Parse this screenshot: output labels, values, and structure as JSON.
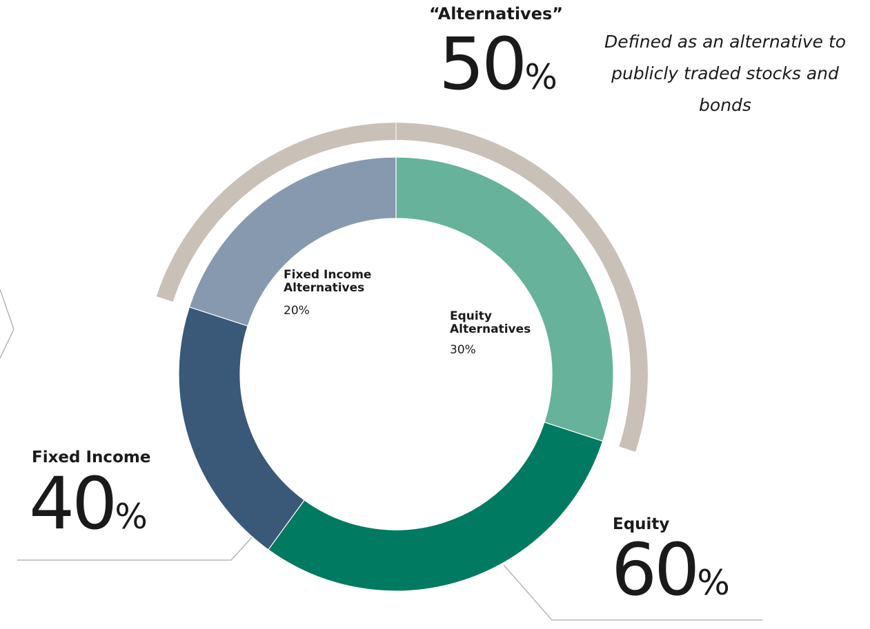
{
  "chart_data": {
    "type": "donut",
    "categories": [
      "Equity Alternatives",
      null,
      null,
      "Fixed Income Alternatives"
    ],
    "values": [
      30,
      30,
      20,
      20
    ],
    "value_labels": [
      "30%",
      null,
      null,
      "20%"
    ],
    "colors": [
      "#66b29a",
      "#007a60",
      "#3a5878",
      "#8799ae"
    ],
    "groups": [
      {
        "name": "Equity",
        "value": 60,
        "value_label": "60%"
      },
      {
        "name": "Fixed Income",
        "value": 40,
        "value_label": "40%"
      }
    ],
    "outer_ring": {
      "name": "“Alternatives”",
      "value": 50,
      "value_label": "50%",
      "color": "#c9c0b8",
      "note": "Defined as an alternative to publicly traded stocks and bonds"
    }
  }
}
